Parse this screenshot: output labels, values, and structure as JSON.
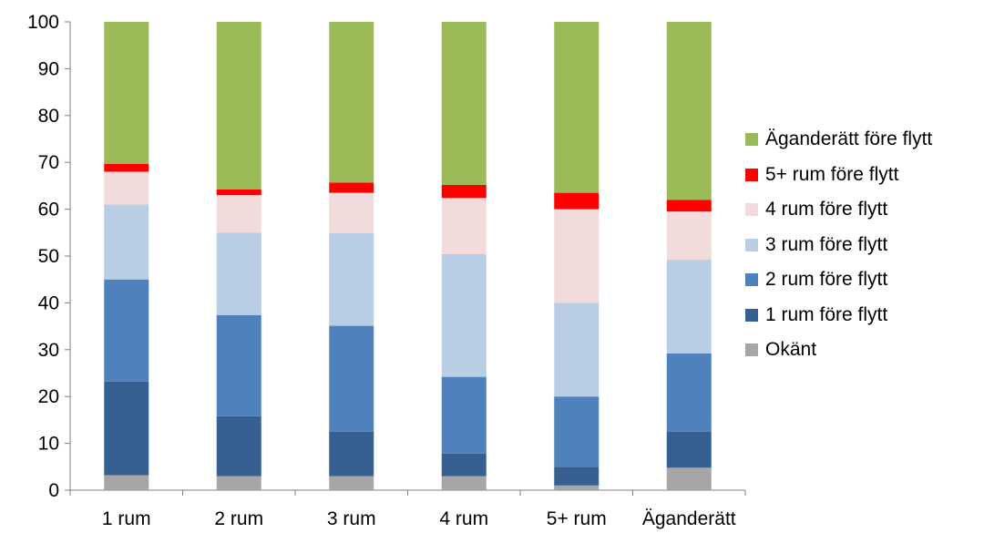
{
  "chart_data": {
    "type": "bar",
    "stacked": true,
    "categories": [
      "1 rum",
      "2 rum",
      "3 rum",
      "4 rum",
      "5+ rum",
      "Äganderätt"
    ],
    "ylim": [
      0,
      100
    ],
    "yticks": [
      0,
      10,
      20,
      30,
      40,
      50,
      60,
      70,
      80,
      90,
      100
    ],
    "grid": false,
    "legend_position": "right",
    "series": [
      {
        "name": "Okänt",
        "color": "#a6a6a6",
        "values": [
          3.2,
          3.0,
          3.0,
          3.0,
          1.0,
          4.8
        ]
      },
      {
        "name": "1 rum före flytt",
        "color": "#376092",
        "values": [
          20.0,
          12.8,
          9.5,
          4.8,
          4.0,
          7.7
        ]
      },
      {
        "name": "2 rum före flytt",
        "color": "#4f81bd",
        "values": [
          21.8,
          21.6,
          22.6,
          16.4,
          15.0,
          16.7
        ]
      },
      {
        "name": "3 rum före flytt",
        "color": "#b9cde5",
        "values": [
          16.0,
          17.6,
          19.8,
          26.2,
          20.0,
          20.0
        ]
      },
      {
        "name": "4 rum före flytt",
        "color": "#f2dcdb",
        "values": [
          7.0,
          8.0,
          8.6,
          12.0,
          20.0,
          10.3
        ]
      },
      {
        "name": "5+ rum före flytt",
        "color": "#ff0000",
        "values": [
          1.7,
          1.2,
          2.2,
          2.8,
          3.5,
          2.5
        ]
      },
      {
        "name": "Äganderätt före flytt",
        "color": "#9bbb59",
        "values": [
          30.3,
          35.8,
          34.3,
          34.8,
          36.5,
          38.0
        ]
      }
    ]
  }
}
